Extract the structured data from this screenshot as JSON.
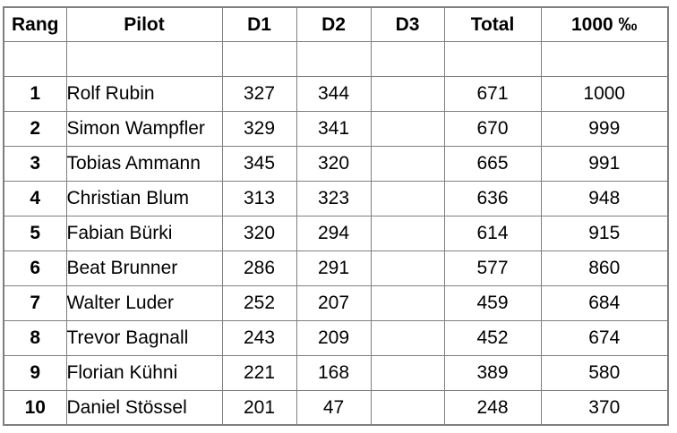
{
  "table": {
    "columns": [
      {
        "key": "rang",
        "label": "Rang"
      },
      {
        "key": "pilot",
        "label": "Pilot"
      },
      {
        "key": "d1",
        "label": "D1"
      },
      {
        "key": "d2",
        "label": "D2"
      },
      {
        "key": "d3",
        "label": "D3"
      },
      {
        "key": "total",
        "label": "Total"
      },
      {
        "key": "promille",
        "label": "1000 ‰"
      }
    ],
    "rows": [
      {
        "rang": "",
        "pilot": "",
        "d1": "",
        "d2": "",
        "d3": "",
        "total": "",
        "promille": ""
      },
      {
        "rang": "1",
        "pilot": "Rolf Rubin",
        "d1": "327",
        "d2": "344",
        "d3": "",
        "total": "671",
        "promille": "1000"
      },
      {
        "rang": "2",
        "pilot": "Simon Wampfler",
        "d1": "329",
        "d2": "341",
        "d3": "",
        "total": "670",
        "promille": "999"
      },
      {
        "rang": "3",
        "pilot": "Tobias Ammann",
        "d1": "345",
        "d2": "320",
        "d3": "",
        "total": "665",
        "promille": "991"
      },
      {
        "rang": "4",
        "pilot": "Christian Blum",
        "d1": "313",
        "d2": "323",
        "d3": "",
        "total": "636",
        "promille": "948"
      },
      {
        "rang": "5",
        "pilot": "Fabian Bürki",
        "d1": "320",
        "d2": "294",
        "d3": "",
        "total": "614",
        "promille": "915"
      },
      {
        "rang": "6",
        "pilot": "Beat Brunner",
        "d1": "286",
        "d2": "291",
        "d3": "",
        "total": "577",
        "promille": "860"
      },
      {
        "rang": "7",
        "pilot": "Walter Luder",
        "d1": "252",
        "d2": "207",
        "d3": "",
        "total": "459",
        "promille": "684"
      },
      {
        "rang": "8",
        "pilot": "Trevor Bagnall",
        "d1": "243",
        "d2": "209",
        "d3": "",
        "total": "452",
        "promille": "674"
      },
      {
        "rang": "9",
        "pilot": "Florian Kühni",
        "d1": "221",
        "d2": "168",
        "d3": "",
        "total": "389",
        "promille": "580"
      },
      {
        "rang": "10",
        "pilot": "Daniel Stössel",
        "d1": "201",
        "d2": "47",
        "d3": "",
        "total": "248",
        "promille": "370"
      }
    ]
  }
}
